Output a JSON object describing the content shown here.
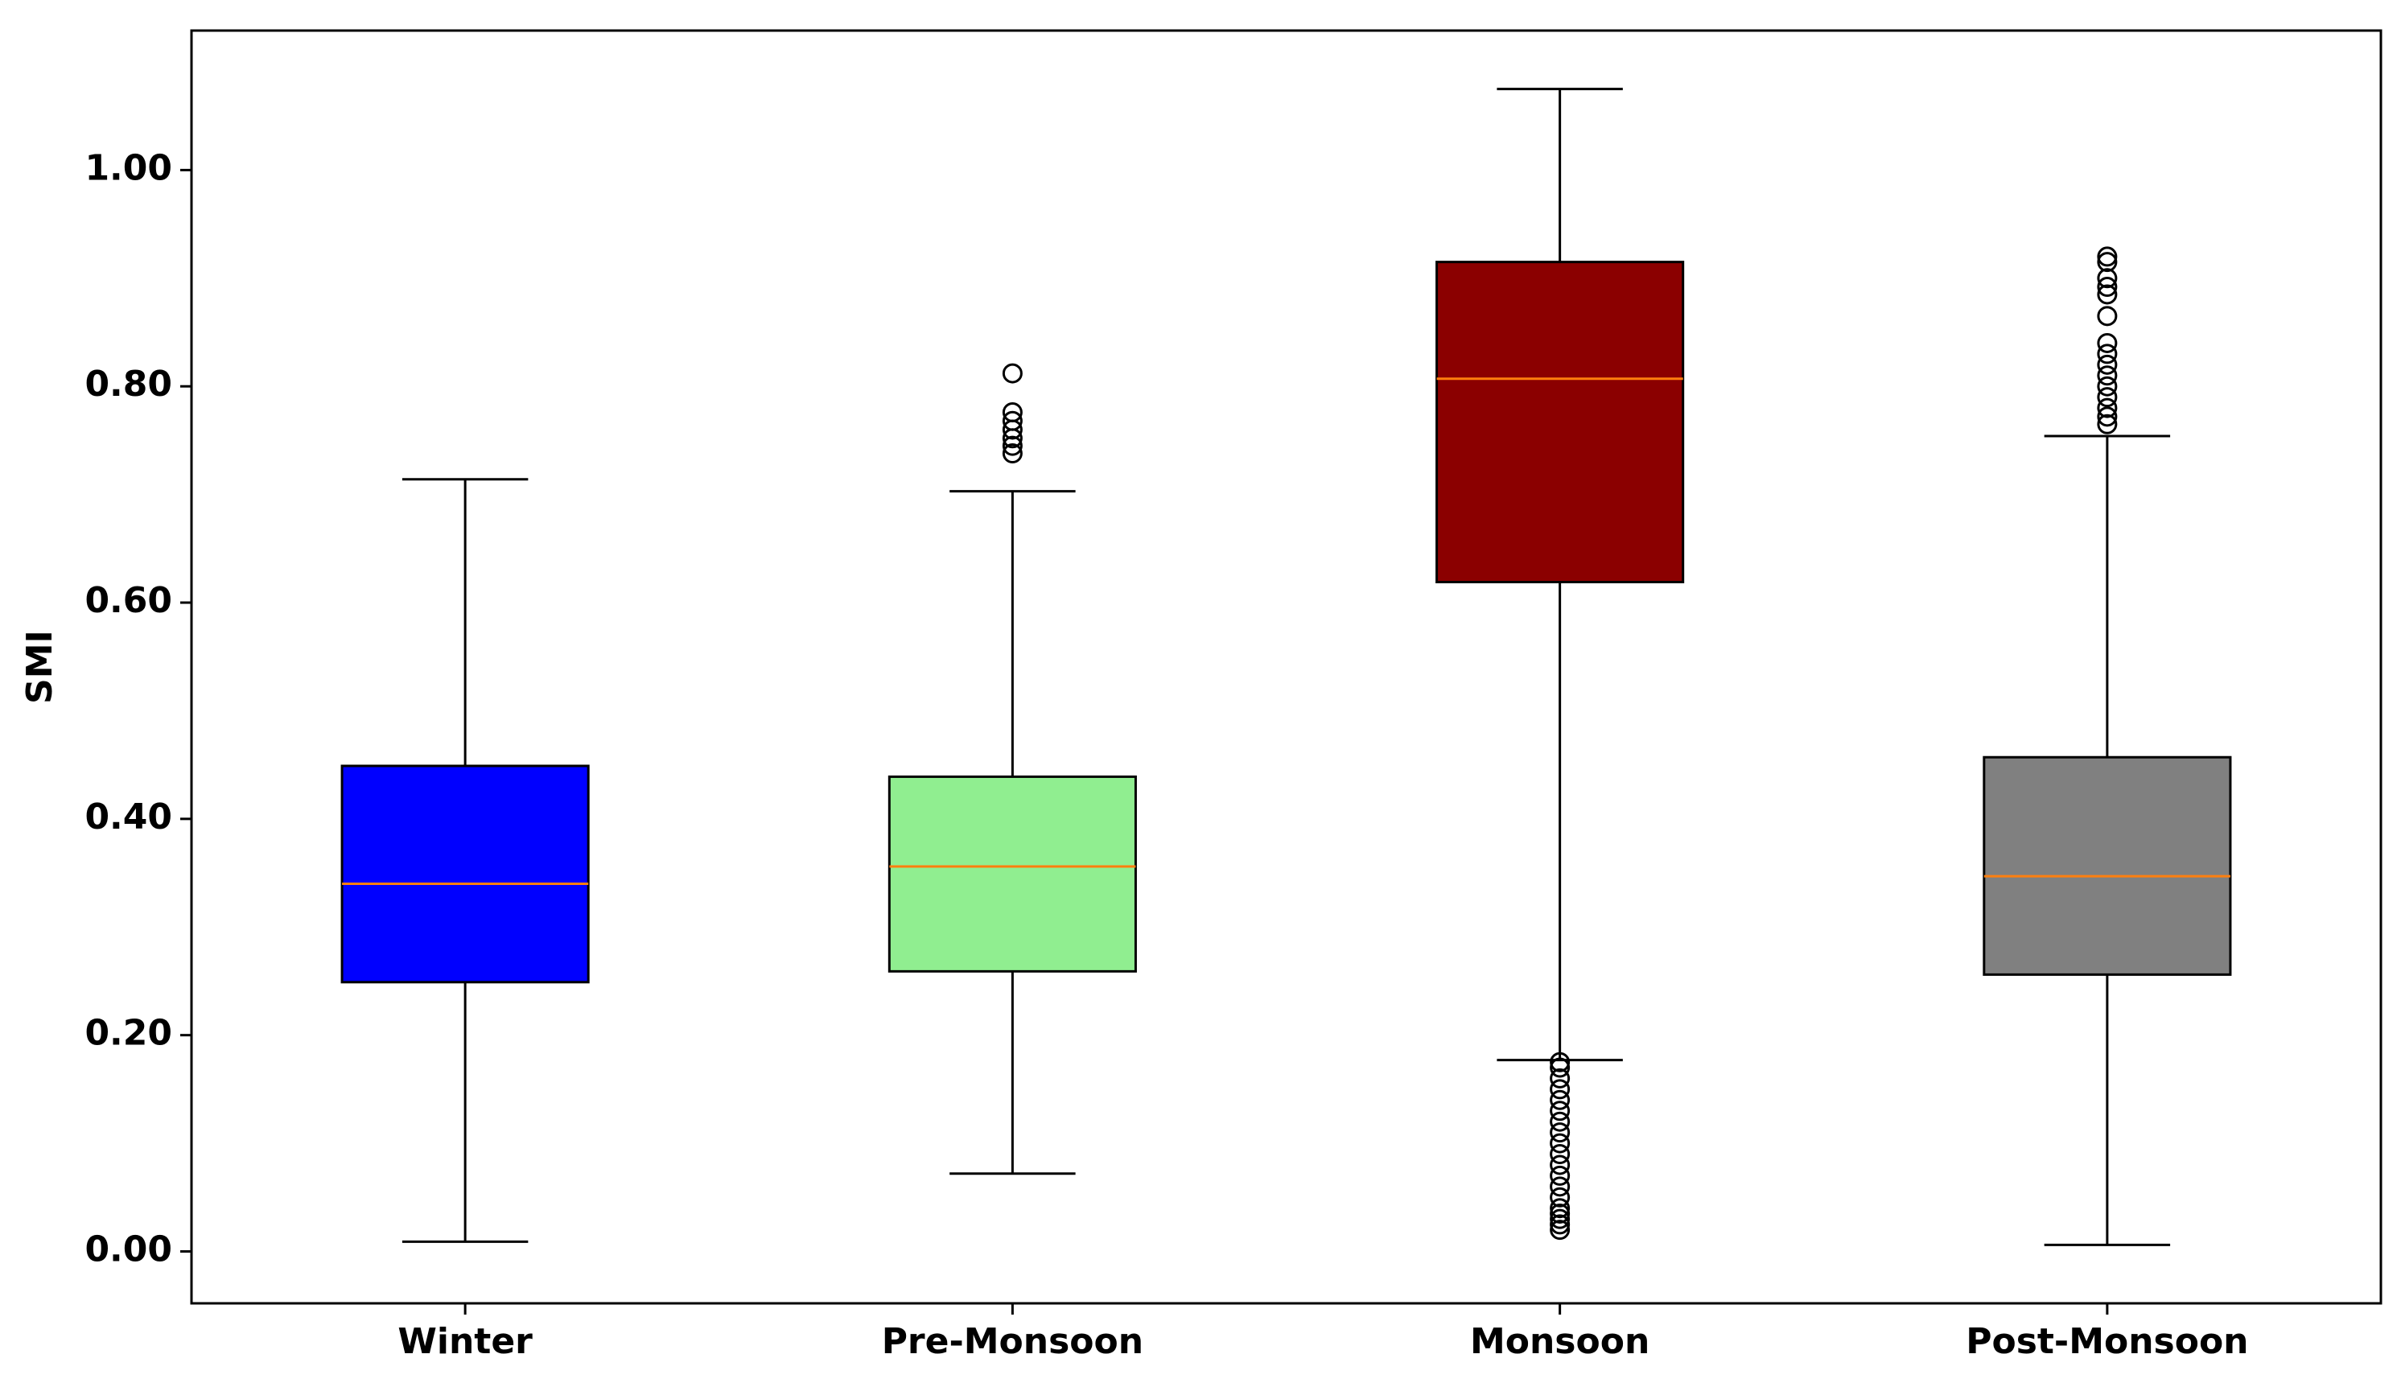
{
  "chart_data": {
    "type": "box",
    "ylabel": "SMI",
    "categories": [
      "Winter",
      "Pre-Monsoon",
      "Monsoon",
      "Post-Monsoon"
    ],
    "boxes": [
      {
        "color": "#0000ff",
        "whislo": 0.009,
        "q1": 0.249,
        "med": 0.34,
        "q3": 0.449,
        "whishi": 0.714,
        "fliers": []
      },
      {
        "color": "#90ee90",
        "whislo": 0.072,
        "q1": 0.259,
        "med": 0.356,
        "q3": 0.439,
        "whishi": 0.703,
        "fliers": [
          0.812,
          0.776,
          0.768,
          0.76,
          0.752,
          0.745,
          0.738
        ]
      },
      {
        "color": "#8b0000",
        "whislo": 0.177,
        "q1": 0.619,
        "med": 0.807,
        "q3": 0.915,
        "whishi": 1.075,
        "fliers": [
          0.02,
          0.025,
          0.03,
          0.035,
          0.04,
          0.05,
          0.06,
          0.07,
          0.08,
          0.09,
          0.1,
          0.11,
          0.12,
          0.13,
          0.14,
          0.15,
          0.16,
          0.17,
          0.175
        ]
      },
      {
        "color": "#808080",
        "whislo": 0.006,
        "q1": 0.256,
        "med": 0.347,
        "q3": 0.457,
        "whishi": 0.754,
        "fliers": [
          0.765,
          0.772,
          0.78,
          0.79,
          0.8,
          0.81,
          0.82,
          0.83,
          0.84,
          0.865,
          0.885,
          0.892,
          0.9,
          0.915,
          0.92
        ]
      }
    ],
    "median_color": "#ff7f0e",
    "ylim": [
      -0.048,
      1.129
    ],
    "yticks": [
      {
        "value": 0,
        "label": "0.00"
      },
      {
        "value": 0.2,
        "label": "0.20"
      },
      {
        "value": 0.4,
        "label": "0.40"
      },
      {
        "value": 0.6,
        "label": "0.60"
      },
      {
        "value": 0.8,
        "label": "0.80"
      },
      {
        "value": 1,
        "label": "1.00"
      }
    ],
    "grid": false
  }
}
